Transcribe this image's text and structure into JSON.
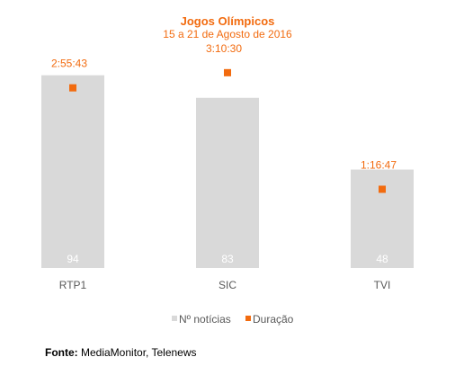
{
  "chart_data": {
    "type": "bar",
    "title": "Jogos Olímpicos",
    "subtitle": "15 a 21 de Agosto de 2016",
    "categories": [
      "RTP1",
      "SIC",
      "TVI"
    ],
    "series": [
      {
        "name": "Nº notícias",
        "kind": "bar",
        "values": [
          94,
          83,
          48
        ],
        "labels": [
          "94",
          "83",
          "48"
        ],
        "color": "#d9d9d9"
      },
      {
        "name": "Duração",
        "kind": "marker",
        "values": [
          "2:55:43",
          "3:10:30",
          "1:16:47"
        ],
        "seconds": [
          10543,
          11430,
          4607
        ],
        "labels": [
          "2:55:43",
          "3:10:30",
          "1:16:47"
        ],
        "color": "#f26b0f"
      }
    ],
    "ylim": [
      0,
      100
    ],
    "grid": false,
    "legend": "bottom"
  },
  "colors": {
    "accent": "#f26b0f",
    "bar": "#d9d9d9",
    "text": "#595959"
  },
  "source": {
    "label": "Fonte:",
    "text": "MediaMonitor, Telenews"
  }
}
